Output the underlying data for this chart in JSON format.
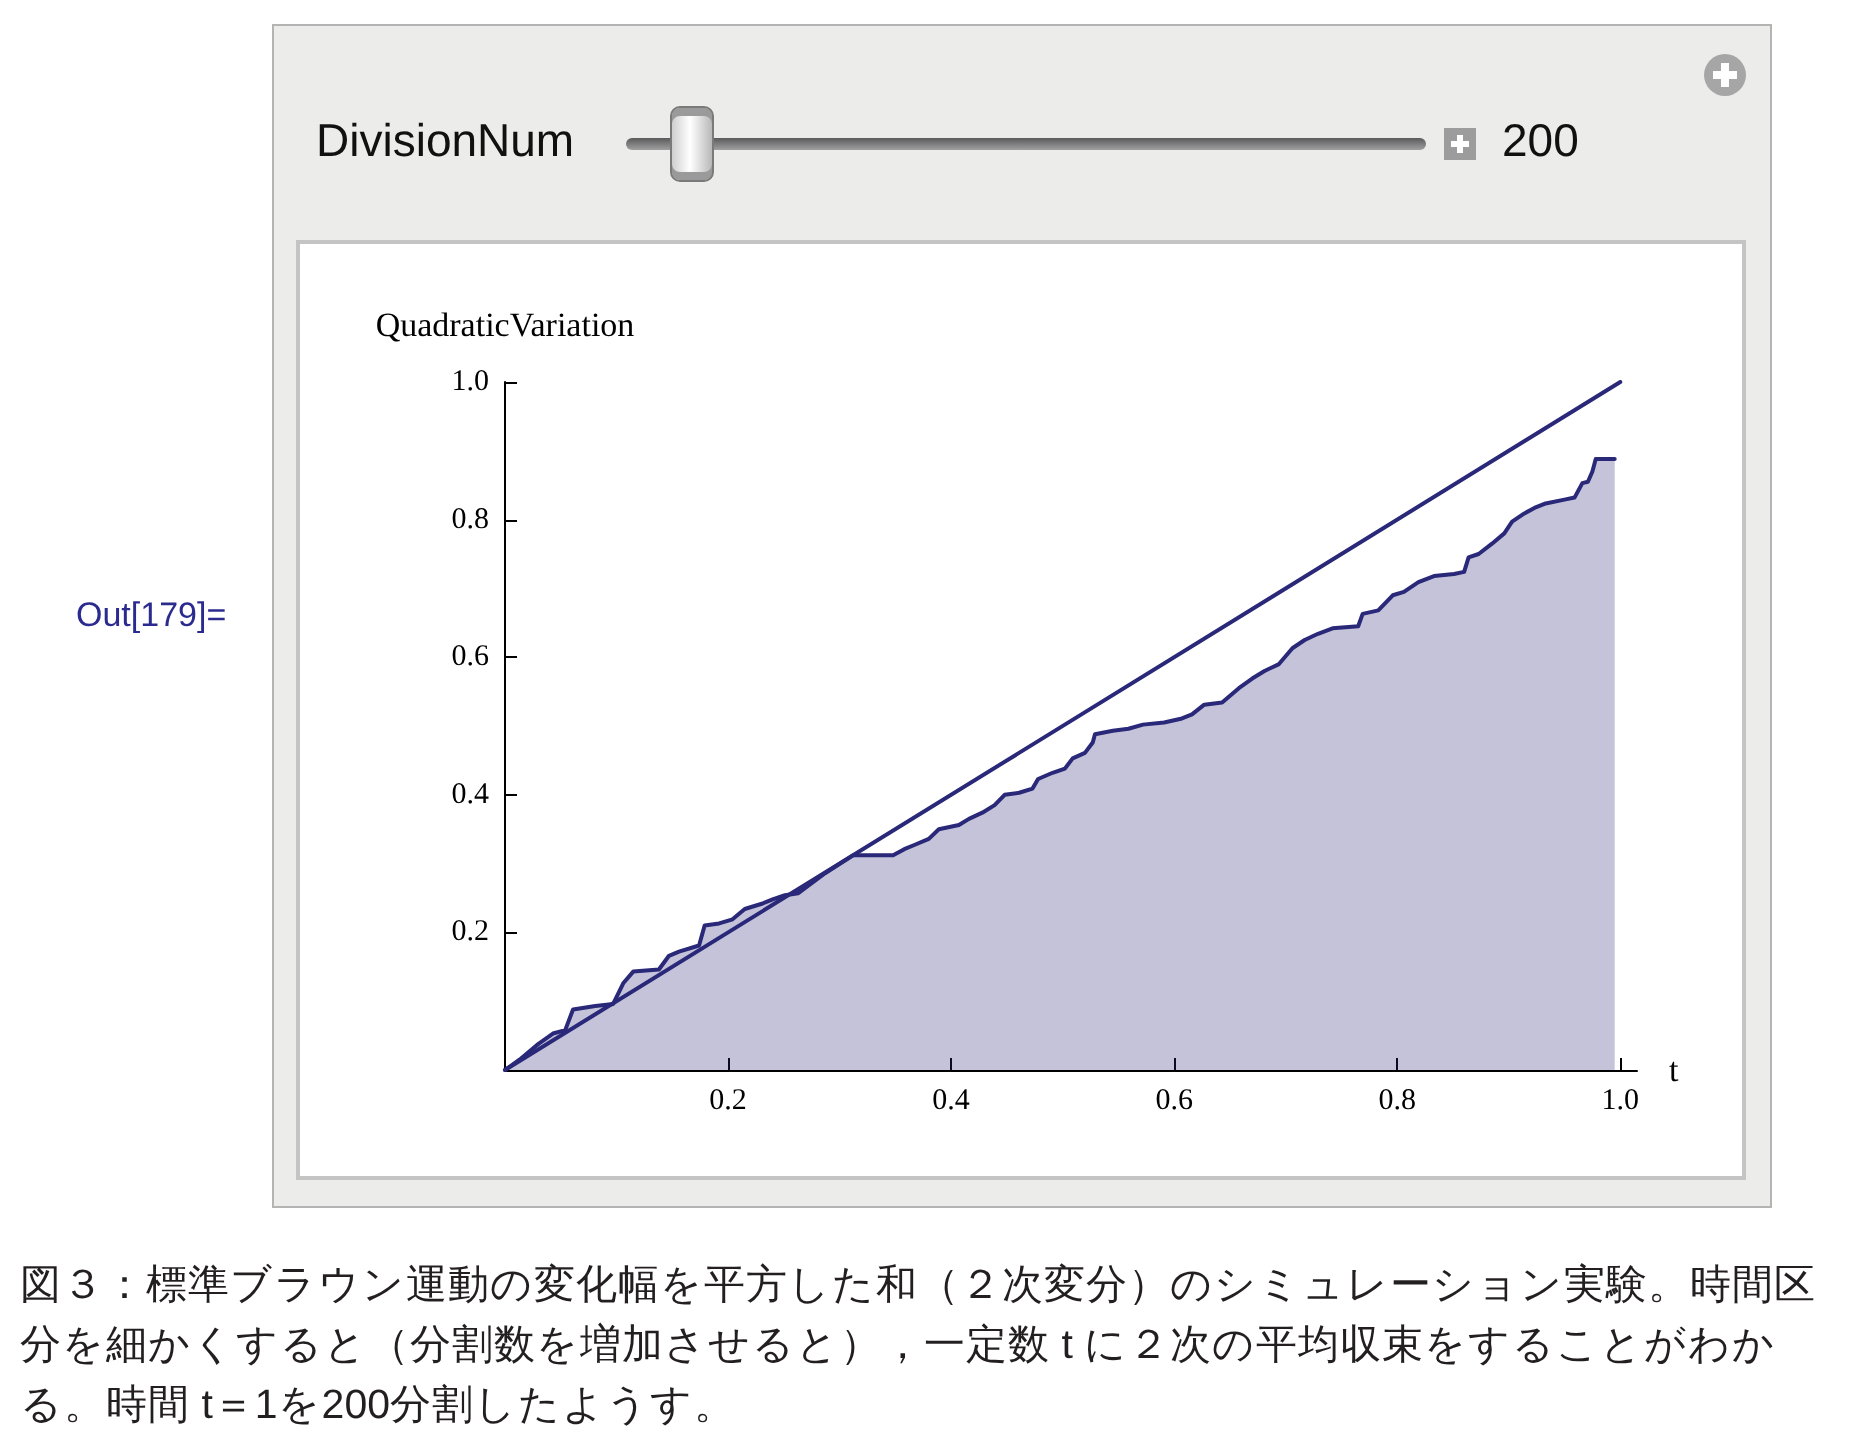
{
  "chart_data": {
    "type": "area",
    "xlabel": "t",
    "ylabel": "QuadraticVariation",
    "xlim": [
      0,
      1.015
    ],
    "ylim": [
      0,
      1
    ],
    "xticks": [
      0.2,
      0.4,
      0.6,
      0.8,
      {
        "value": 1,
        "label": "1.0"
      }
    ],
    "yticks": [
      0.2,
      0.4,
      0.6,
      0.8,
      {
        "value": 1,
        "label": "1.0"
      }
    ],
    "series": [
      {
        "color": "#2a2878",
        "x": [
          0,
          0.013,
          0.03,
          0.043,
          0.054,
          0.061,
          0.081,
          0.097,
          0.106,
          0.115,
          0.138,
          0.147,
          0.156,
          0.174,
          0.179,
          0.192,
          0.204,
          0.215,
          0.231,
          0.24,
          0.251,
          0.263,
          0.287,
          0.312,
          0.348,
          0.358,
          0.367,
          0.38,
          0.389,
          0.407,
          0.416,
          0.428,
          0.439,
          0.448,
          0.461,
          0.473,
          0.478,
          0.491,
          0.502,
          0.509,
          0.52,
          0.527,
          0.529,
          0.545,
          0.559,
          0.572,
          0.591,
          0.607,
          0.616,
          0.627,
          0.643,
          0.658,
          0.67,
          0.681,
          0.694,
          0.706,
          0.717,
          0.729,
          0.742,
          0.765,
          0.769,
          0.783,
          0.796,
          0.806,
          0.819,
          0.833,
          0.851,
          0.86,
          0.864,
          0.873,
          0.885,
          0.896,
          0.903,
          0.914,
          0.923,
          0.932,
          0.95,
          0.959,
          0.966,
          0.971,
          0.975,
          0.978,
          0.995
        ],
        "values": [
          0,
          0.015,
          0.038,
          0.053,
          0.058,
          0.088,
          0.093,
          0.096,
          0.126,
          0.143,
          0.146,
          0.166,
          0.172,
          0.181,
          0.21,
          0.213,
          0.219,
          0.234,
          0.242,
          0.248,
          0.254,
          0.257,
          0.286,
          0.312,
          0.312,
          0.321,
          0.327,
          0.336,
          0.35,
          0.356,
          0.365,
          0.374,
          0.385,
          0.4,
          0.403,
          0.409,
          0.423,
          0.432,
          0.438,
          0.453,
          0.461,
          0.476,
          0.488,
          0.493,
          0.496,
          0.502,
          0.505,
          0.511,
          0.517,
          0.531,
          0.534,
          0.555,
          0.569,
          0.58,
          0.59,
          0.613,
          0.625,
          0.634,
          0.642,
          0.645,
          0.663,
          0.668,
          0.69,
          0.695,
          0.709,
          0.718,
          0.721,
          0.724,
          0.745,
          0.75,
          0.765,
          0.78,
          0.797,
          0.809,
          0.817,
          0.823,
          0.829,
          0.832,
          0.853,
          0.855,
          0.87,
          0.888,
          0.888
        ]
      },
      {
        "type": "line",
        "color": "#2a2878",
        "x": [
          0,
          1
        ],
        "values": [
          0,
          1
        ]
      }
    ],
    "annotations": [
      "Out[179]=",
      "DivisionNum",
      "200",
      "図３：標準ブラウン運動の変化幅を平方した和（２次変分）のシミュレーション実験。時間区分を細かくすると（分割数を増加させると），一定数 t に２次の平均収束をすることがわかる。時間 t＝1を200分割したようす。"
    ]
  }
}
